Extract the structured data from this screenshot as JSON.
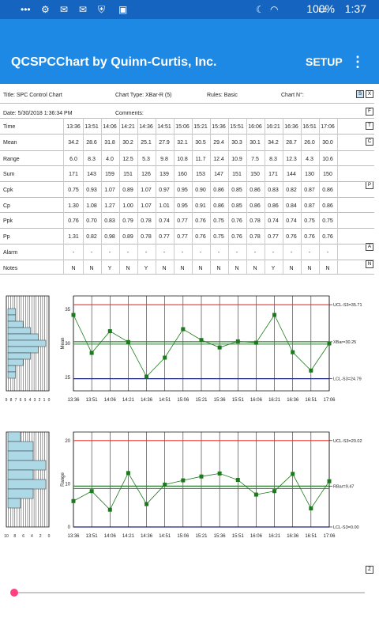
{
  "status_bar": {
    "time": "1:37",
    "battery": "100%"
  },
  "app": {
    "title": "QCSPCChart by Quinn-Curtis, Inc.",
    "setup_label": "SETUP",
    "more_label": "⋮"
  },
  "header": {
    "title": "Title: SPC Control Chart",
    "chart_type": "Chart Type: XBar-R (5)",
    "rules": "Rules: Basic",
    "chart_no": "Chart N°:",
    "date": "Date: 5/30/2018 1:36:34 PM",
    "comments": "Comments:"
  },
  "side_buttons": {
    "s": "S",
    "x": "X",
    "f": "F",
    "t": "T",
    "c": "C",
    "p": "P",
    "a": "A",
    "n": "N",
    "z": "Z"
  },
  "table": {
    "rows": [
      {
        "label": "Time",
        "values": [
          "13:36",
          "13:51",
          "14:06",
          "14:21",
          "14:36",
          "14:51",
          "15:06",
          "15:21",
          "15:36",
          "15:51",
          "16:06",
          "16:21",
          "16:36",
          "16:51",
          "17:06"
        ]
      },
      {
        "label": "Mean",
        "values": [
          "34.2",
          "28.6",
          "31.8",
          "30.2",
          "25.1",
          "27.9",
          "32.1",
          "30.5",
          "29.4",
          "30.3",
          "30.1",
          "34.2",
          "28.7",
          "26.0",
          "30.0"
        ]
      },
      {
        "label": "Range",
        "values": [
          "6.0",
          "8.3",
          "4.0",
          "12.5",
          "5.3",
          "9.8",
          "10.8",
          "11.7",
          "12.4",
          "10.9",
          "7.5",
          "8.3",
          "12.3",
          "4.3",
          "10.6"
        ]
      },
      {
        "label": "Sum",
        "values": [
          "171",
          "143",
          "159",
          "151",
          "126",
          "139",
          "160",
          "153",
          "147",
          "151",
          "150",
          "171",
          "144",
          "130",
          "150"
        ]
      },
      {
        "label": "Cpk",
        "values": [
          "0.75",
          "0.93",
          "1.07",
          "0.89",
          "1.07",
          "0.97",
          "0.95",
          "0.90",
          "0.86",
          "0.85",
          "0.86",
          "0.83",
          "0.82",
          "0.87",
          "0.86"
        ]
      },
      {
        "label": "Cp",
        "values": [
          "1.30",
          "1.08",
          "1.27",
          "1.00",
          "1.07",
          "1.01",
          "0.95",
          "0.91",
          "0.86",
          "0.85",
          "0.86",
          "0.86",
          "0.84",
          "0.87",
          "0.86"
        ]
      },
      {
        "label": "Ppk",
        "values": [
          "0.76",
          "0.70",
          "0.83",
          "0.79",
          "0.78",
          "0.74",
          "0.77",
          "0.76",
          "0.75",
          "0.76",
          "0.78",
          "0.74",
          "0.74",
          "0.75",
          "0.75"
        ]
      },
      {
        "label": "Pp",
        "values": [
          "1.31",
          "0.82",
          "0.98",
          "0.89",
          "0.78",
          "0.77",
          "0.77",
          "0.76",
          "0.75",
          "0.76",
          "0.78",
          "0.77",
          "0.76",
          "0.76",
          "0.76"
        ]
      },
      {
        "label": "Alarm",
        "values": [
          "-",
          "-",
          "-",
          "-",
          "-",
          "-",
          "-",
          "-",
          "-",
          "-",
          "-",
          "-",
          "-",
          "-",
          "-"
        ]
      },
      {
        "label": "Notes",
        "values": [
          "N",
          "N",
          "Y",
          "N",
          "Y",
          "N",
          "N",
          "N",
          "N",
          "N",
          "N",
          "Y",
          "N",
          "N",
          "N"
        ]
      }
    ]
  },
  "chart_data": [
    {
      "type": "line",
      "title": "",
      "xlabel": "",
      "ylabel": "Mean",
      "categories": [
        "13:36",
        "13:51",
        "14:06",
        "14:21",
        "14:36",
        "14:51",
        "15:06",
        "15:21",
        "15:36",
        "15:51",
        "16:06",
        "16:21",
        "16:36",
        "16:51",
        "17:06"
      ],
      "values": [
        34.2,
        28.6,
        31.8,
        30.2,
        25.1,
        27.9,
        32.1,
        30.5,
        29.4,
        30.3,
        30.1,
        34.2,
        28.7,
        26.0,
        30.0
      ],
      "ylim": [
        23,
        37
      ],
      "yticks": [
        25,
        30,
        35
      ],
      "limits": {
        "ucl": 35.71,
        "center": 30.25,
        "lcl": 24.79
      },
      "limit_labels": {
        "ucl": "UCL-S3=35.71",
        "center": "XBar=30.25",
        "lcl": "LCL-S3=24.79"
      },
      "histogram": {
        "xticks": [
          "9",
          "8",
          "7",
          "6",
          "5",
          "4",
          "3",
          "2",
          "1",
          "0"
        ],
        "counts": [
          0,
          0,
          1,
          1,
          2,
          3,
          4,
          5,
          4,
          3,
          2,
          1,
          1,
          0,
          0
        ]
      }
    },
    {
      "type": "line",
      "title": "",
      "xlabel": "",
      "ylabel": "Range",
      "categories": [
        "13:36",
        "13:51",
        "14:06",
        "14:21",
        "14:36",
        "14:51",
        "15:06",
        "15:21",
        "15:36",
        "15:51",
        "16:06",
        "16:21",
        "16:36",
        "16:51",
        "17:06"
      ],
      "values": [
        6.0,
        8.3,
        4.0,
        12.5,
        5.3,
        9.8,
        10.8,
        11.7,
        12.4,
        10.9,
        7.5,
        8.3,
        12.3,
        4.3,
        10.6
      ],
      "ylim": [
        0,
        22
      ],
      "yticks": [
        0,
        10,
        20
      ],
      "limits": {
        "ucl": 20.02,
        "center": 9.47,
        "lcl": 0.0
      },
      "limit_labels": {
        "ucl": "UCL-S3=20.02",
        "center": "RBar=9.47",
        "lcl": "LCL-S3=0.00"
      },
      "histogram": {
        "xticks": [
          "10",
          "8",
          "6",
          "4",
          "2",
          "0"
        ],
        "counts": [
          1,
          2,
          2,
          3,
          2,
          3,
          2,
          1,
          0,
          0
        ]
      }
    }
  ],
  "colors": {
    "statusbar": "#1565c0",
    "appbar": "#1e88e5",
    "ucl": "#e53935",
    "center": "#2e7d32",
    "lcl": "#1a237e",
    "series": "#1b7a1b",
    "hist": "#add8e6",
    "seek": "#ff4081"
  }
}
